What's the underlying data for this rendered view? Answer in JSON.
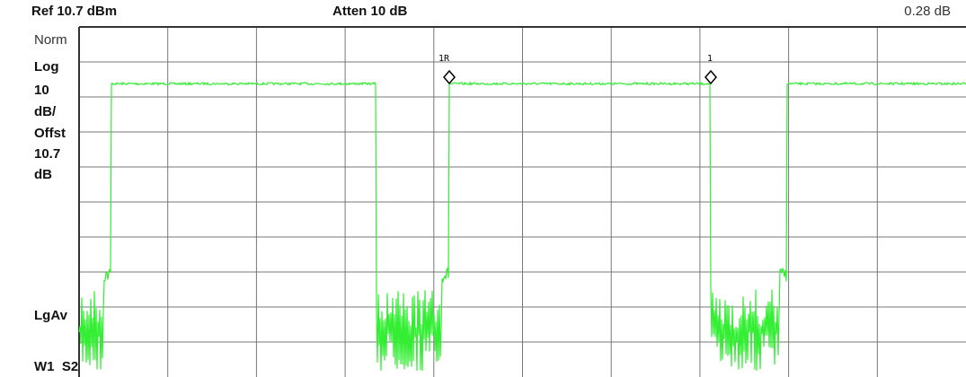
{
  "header": {
    "ref": "Ref 10.7 dBm",
    "atten": "Atten 10 dB",
    "delta": "0.28 dB"
  },
  "sidebar": {
    "labels": [
      "Norm",
      "Log",
      "10",
      "dB/",
      "Offst",
      "10.7",
      "dB"
    ],
    "detector": "LgAv",
    "status": "W1  S2"
  },
  "markers": [
    "1R",
    "1"
  ]
}
